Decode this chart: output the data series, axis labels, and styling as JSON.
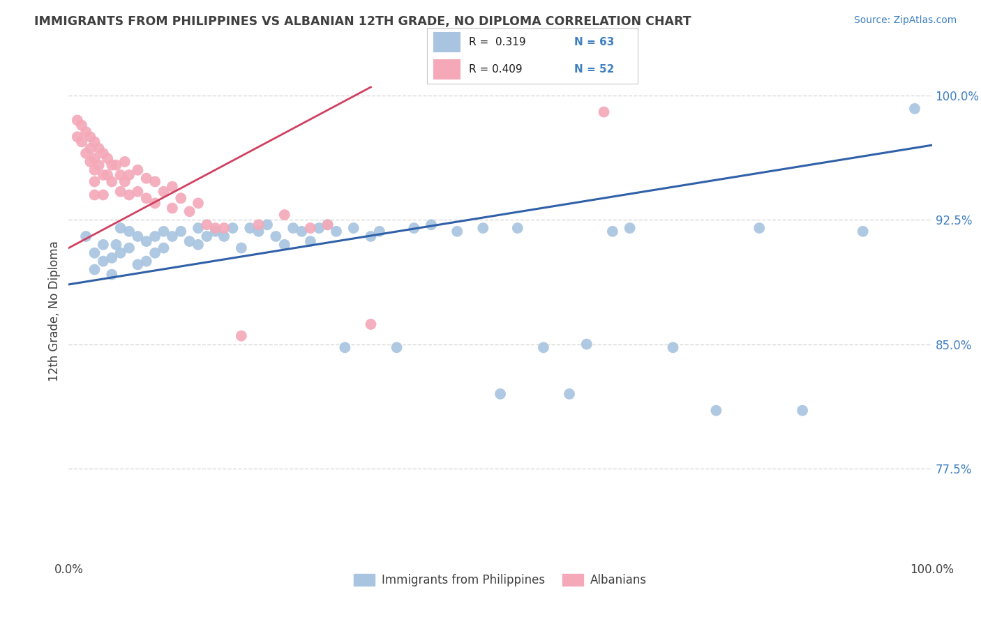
{
  "title": "IMMIGRANTS FROM PHILIPPINES VS ALBANIAN 12TH GRADE, NO DIPLOMA CORRELATION CHART",
  "source": "Source: ZipAtlas.com",
  "ylabel": "12th Grade, No Diploma",
  "ytick_labels": [
    "77.5%",
    "85.0%",
    "92.5%",
    "100.0%"
  ],
  "ytick_values": [
    0.775,
    0.85,
    0.925,
    1.0
  ],
  "legend_blue_r": "R =  0.319",
  "legend_blue_n": "N = 63",
  "legend_pink_r": "R = 0.409",
  "legend_pink_n": "N = 52",
  "legend_blue_label": "Immigrants from Philippines",
  "legend_pink_label": "Albanians",
  "blue_color": "#a8c4e0",
  "pink_color": "#f4a8b8",
  "blue_line_color": "#3060a8",
  "pink_line_color": "#d04060",
  "title_color": "#404040",
  "source_color": "#4080c0",
  "grid_color": "#d8d8d8",
  "legend_r_color": "#4080c0",
  "blue_points_x": [
    0.02,
    0.03,
    0.03,
    0.04,
    0.04,
    0.05,
    0.05,
    0.055,
    0.06,
    0.06,
    0.07,
    0.07,
    0.08,
    0.08,
    0.09,
    0.09,
    0.1,
    0.1,
    0.11,
    0.11,
    0.12,
    0.13,
    0.14,
    0.15,
    0.15,
    0.16,
    0.17,
    0.18,
    0.19,
    0.2,
    0.21,
    0.22,
    0.23,
    0.24,
    0.25,
    0.26,
    0.27,
    0.28,
    0.29,
    0.3,
    0.31,
    0.32,
    0.33,
    0.35,
    0.36,
    0.38,
    0.4,
    0.42,
    0.45,
    0.48,
    0.5,
    0.52,
    0.55,
    0.58,
    0.6,
    0.63,
    0.65,
    0.7,
    0.75,
    0.8,
    0.85,
    0.92,
    0.98
  ],
  "blue_points_y": [
    0.915,
    0.905,
    0.895,
    0.91,
    0.9,
    0.902,
    0.892,
    0.91,
    0.92,
    0.905,
    0.918,
    0.908,
    0.915,
    0.898,
    0.912,
    0.9,
    0.915,
    0.905,
    0.918,
    0.908,
    0.915,
    0.918,
    0.912,
    0.92,
    0.91,
    0.915,
    0.918,
    0.915,
    0.92,
    0.908,
    0.92,
    0.918,
    0.922,
    0.915,
    0.91,
    0.92,
    0.918,
    0.912,
    0.92,
    0.922,
    0.918,
    0.848,
    0.92,
    0.915,
    0.918,
    0.848,
    0.92,
    0.922,
    0.918,
    0.92,
    0.82,
    0.92,
    0.848,
    0.82,
    0.85,
    0.918,
    0.92,
    0.848,
    0.81,
    0.92,
    0.81,
    0.918,
    0.992
  ],
  "pink_points_x": [
    0.01,
    0.01,
    0.015,
    0.015,
    0.02,
    0.02,
    0.025,
    0.025,
    0.025,
    0.03,
    0.03,
    0.03,
    0.03,
    0.03,
    0.035,
    0.035,
    0.04,
    0.04,
    0.04,
    0.045,
    0.045,
    0.05,
    0.05,
    0.055,
    0.06,
    0.06,
    0.065,
    0.065,
    0.07,
    0.07,
    0.08,
    0.08,
    0.09,
    0.09,
    0.1,
    0.1,
    0.11,
    0.12,
    0.12,
    0.13,
    0.14,
    0.15,
    0.16,
    0.17,
    0.18,
    0.2,
    0.22,
    0.25,
    0.28,
    0.3,
    0.35,
    0.62
  ],
  "pink_points_y": [
    0.985,
    0.975,
    0.982,
    0.972,
    0.978,
    0.965,
    0.975,
    0.968,
    0.96,
    0.972,
    0.962,
    0.955,
    0.948,
    0.94,
    0.968,
    0.958,
    0.965,
    0.952,
    0.94,
    0.962,
    0.952,
    0.958,
    0.948,
    0.958,
    0.952,
    0.942,
    0.96,
    0.948,
    0.952,
    0.94,
    0.955,
    0.942,
    0.95,
    0.938,
    0.948,
    0.935,
    0.942,
    0.945,
    0.932,
    0.938,
    0.93,
    0.935,
    0.922,
    0.92,
    0.92,
    0.855,
    0.922,
    0.928,
    0.92,
    0.922,
    0.862,
    0.99
  ],
  "blue_line_x": [
    0.0,
    1.0
  ],
  "blue_line_y": [
    0.886,
    0.97
  ],
  "pink_line_x": [
    0.0,
    0.35
  ],
  "pink_line_y": [
    0.908,
    1.005
  ],
  "xlim": [
    0.0,
    1.0
  ],
  "ylim": [
    0.72,
    1.02
  ]
}
